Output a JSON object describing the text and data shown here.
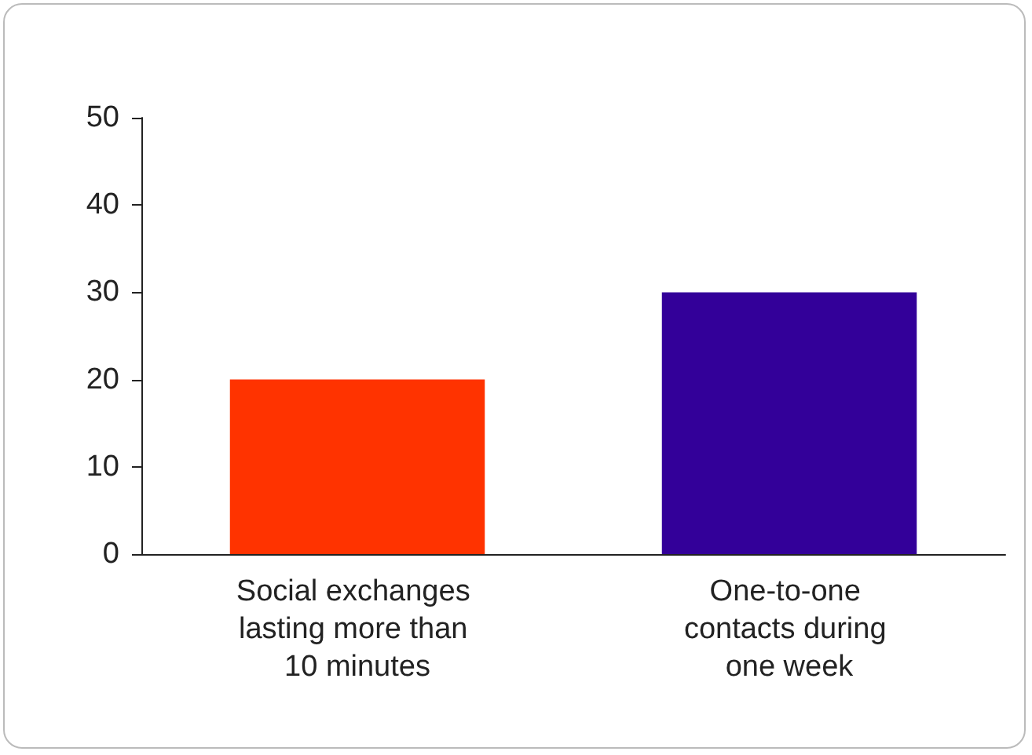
{
  "chart_data": {
    "type": "bar",
    "categories": [
      "Social exchanges lasting more than 10 minutes",
      "One-to-one contacts during one week"
    ],
    "values": [
      20,
      30
    ],
    "colors": [
      "#ff3300",
      "#330099"
    ],
    "ylim": [
      0,
      50
    ],
    "yticks": [
      0,
      10,
      20,
      30,
      40,
      50
    ],
    "grid": false
  }
}
